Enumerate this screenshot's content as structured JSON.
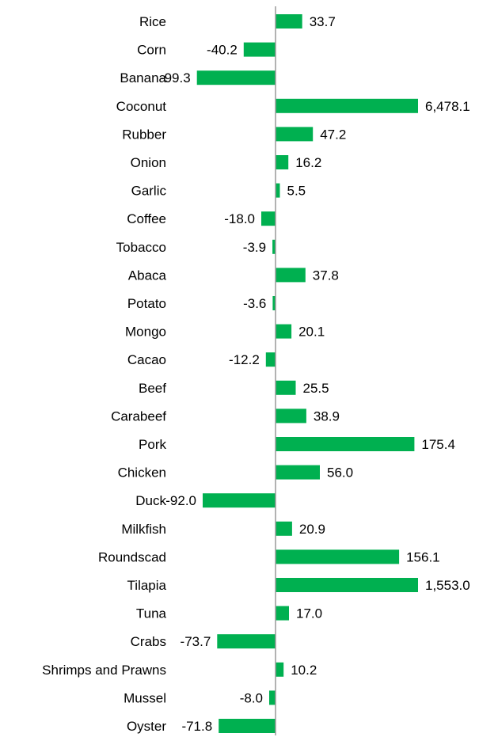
{
  "chart_data": {
    "type": "bar",
    "orientation": "horizontal",
    "bar_color": "#00b050",
    "axis_color": "#999999",
    "categories": [
      "Rice",
      "Corn",
      "Banana",
      "Coconut",
      "Rubber",
      "Onion",
      "Garlic",
      "Coffee",
      "Tobacco",
      "Abaca",
      "Potato",
      "Mongo",
      "Cacao",
      "Beef",
      "Carabeef",
      "Pork",
      "Chicken",
      "Duck",
      "Milkfish",
      "Roundscad",
      "Tilapia",
      "Tuna",
      "Crabs",
      "Shrimps and Prawns",
      "Mussel",
      "Oyster"
    ],
    "values": [
      33.7,
      -40.2,
      -99.3,
      6478.1,
      47.2,
      16.2,
      5.5,
      -18.0,
      -3.9,
      37.8,
      -3.6,
      20.1,
      -12.2,
      25.5,
      38.9,
      175.4,
      56.0,
      -92.0,
      20.9,
      156.1,
      1553.0,
      17.0,
      -73.7,
      10.2,
      -8.0,
      -71.8
    ],
    "value_labels": [
      "33.7",
      "-40.2",
      "-99.3",
      "6,478.1",
      "47.2",
      "16.2",
      "5.5",
      "-18.0",
      "-3.9",
      "37.8",
      "-3.6",
      "20.1",
      "-12.2",
      "25.5",
      "38.9",
      "175.4",
      "56.0",
      "-92.0",
      "20.9",
      "156.1",
      "1,553.0",
      "17.0",
      "-73.7",
      "10.2",
      "-8.0",
      "-71.8"
    ],
    "bars_clipped_at": 180,
    "title": "",
    "xlabel": "",
    "ylabel": "",
    "grid": false,
    "legend": "none"
  }
}
